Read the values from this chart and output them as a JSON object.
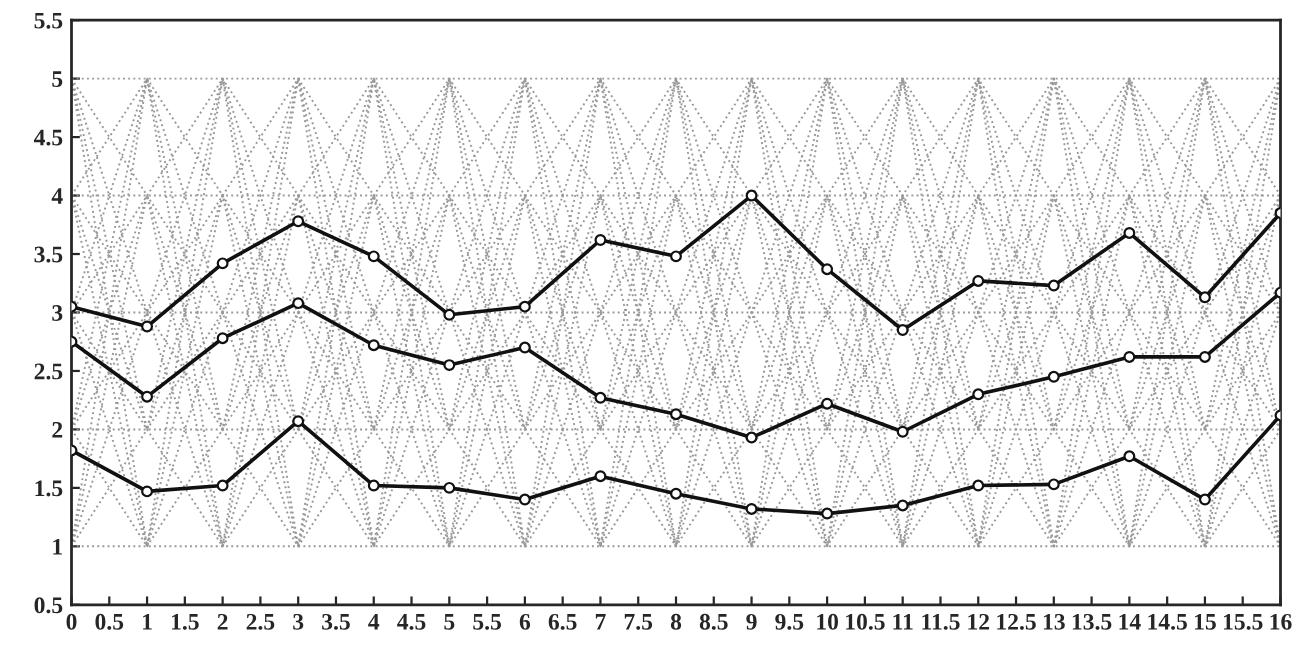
{
  "chart_data": {
    "type": "line",
    "x": [
      0,
      1,
      2,
      3,
      4,
      5,
      6,
      7,
      8,
      9,
      10,
      11,
      12,
      13,
      14,
      15,
      16
    ],
    "xlim": [
      0,
      16
    ],
    "ylim": [
      0.5,
      5.5
    ],
    "xticks": [
      0,
      0.5,
      1,
      1.5,
      2,
      2.5,
      3,
      3.5,
      4,
      4.5,
      5,
      5.5,
      6,
      6.5,
      7,
      7.5,
      8,
      8.5,
      9,
      9.5,
      10,
      10.5,
      11,
      11.5,
      12,
      12.5,
      13,
      13.5,
      14,
      14.5,
      15,
      15.5,
      16
    ],
    "yticks": [
      0.5,
      1,
      1.5,
      2,
      2.5,
      3,
      3.5,
      4,
      4.5,
      5,
      5.5
    ],
    "grid": false,
    "legend": false,
    "series": [
      {
        "color": "#999999",
        "line_style": "dotted",
        "marker": "none",
        "values": [
          1,
          1,
          1,
          1,
          1,
          1,
          1,
          1,
          1,
          1,
          1,
          1,
          1,
          1,
          1,
          1,
          1
        ]
      },
      {
        "color": "#999999",
        "line_style": "dotted",
        "marker": "none",
        "values": [
          1,
          2,
          1,
          2,
          1,
          2,
          1,
          2,
          1,
          2,
          1,
          2,
          1,
          2,
          1,
          2,
          1
        ]
      },
      {
        "color": "#999999",
        "line_style": "dotted",
        "marker": "none",
        "values": [
          1,
          3,
          1,
          3,
          1,
          3,
          1,
          3,
          1,
          3,
          1,
          3,
          1,
          3,
          1,
          3,
          1
        ]
      },
      {
        "color": "#999999",
        "line_style": "dotted",
        "marker": "none",
        "values": [
          1,
          4,
          1,
          4,
          1,
          4,
          1,
          4,
          1,
          4,
          1,
          4,
          1,
          4,
          1,
          4,
          1
        ]
      },
      {
        "color": "#999999",
        "line_style": "dotted",
        "marker": "none",
        "values": [
          1,
          5,
          1,
          5,
          1,
          5,
          1,
          5,
          1,
          5,
          1,
          5,
          1,
          5,
          1,
          5,
          1
        ]
      },
      {
        "color": "#999999",
        "line_style": "dotted",
        "marker": "none",
        "values": [
          2,
          1,
          2,
          1,
          2,
          1,
          2,
          1,
          2,
          1,
          2,
          1,
          2,
          1,
          2,
          1,
          2
        ]
      },
      {
        "color": "#999999",
        "line_style": "dotted",
        "marker": "none",
        "values": [
          2,
          2,
          2,
          2,
          2,
          2,
          2,
          2,
          2,
          2,
          2,
          2,
          2,
          2,
          2,
          2,
          2
        ]
      },
      {
        "color": "#999999",
        "line_style": "dotted",
        "marker": "none",
        "values": [
          2,
          3,
          2,
          3,
          2,
          3,
          2,
          3,
          2,
          3,
          2,
          3,
          2,
          3,
          2,
          3,
          2
        ]
      },
      {
        "color": "#999999",
        "line_style": "dotted",
        "marker": "none",
        "values": [
          2,
          4,
          2,
          4,
          2,
          4,
          2,
          4,
          2,
          4,
          2,
          4,
          2,
          4,
          2,
          4,
          2
        ]
      },
      {
        "color": "#999999",
        "line_style": "dotted",
        "marker": "none",
        "values": [
          2,
          5,
          2,
          5,
          2,
          5,
          2,
          5,
          2,
          5,
          2,
          5,
          2,
          5,
          2,
          5,
          2
        ]
      },
      {
        "color": "#999999",
        "line_style": "dotted",
        "marker": "none",
        "values": [
          3,
          1,
          3,
          1,
          3,
          1,
          3,
          1,
          3,
          1,
          3,
          1,
          3,
          1,
          3,
          1,
          3
        ]
      },
      {
        "color": "#999999",
        "line_style": "dotted",
        "marker": "none",
        "values": [
          3,
          2,
          3,
          2,
          3,
          2,
          3,
          2,
          3,
          2,
          3,
          2,
          3,
          2,
          3,
          2,
          3
        ]
      },
      {
        "color": "#999999",
        "line_style": "dotted",
        "marker": "none",
        "values": [
          3,
          3,
          3,
          3,
          3,
          3,
          3,
          3,
          3,
          3,
          3,
          3,
          3,
          3,
          3,
          3,
          3
        ]
      },
      {
        "color": "#999999",
        "line_style": "dotted",
        "marker": "none",
        "values": [
          3,
          4,
          3,
          4,
          3,
          4,
          3,
          4,
          3,
          4,
          3,
          4,
          3,
          4,
          3,
          4,
          3
        ]
      },
      {
        "color": "#999999",
        "line_style": "dotted",
        "marker": "none",
        "values": [
          3,
          5,
          3,
          5,
          3,
          5,
          3,
          5,
          3,
          5,
          3,
          5,
          3,
          5,
          3,
          5,
          3
        ]
      },
      {
        "color": "#999999",
        "line_style": "dotted",
        "marker": "none",
        "values": [
          4,
          1,
          4,
          1,
          4,
          1,
          4,
          1,
          4,
          1,
          4,
          1,
          4,
          1,
          4,
          1,
          4
        ]
      },
      {
        "color": "#999999",
        "line_style": "dotted",
        "marker": "none",
        "values": [
          4,
          2,
          4,
          2,
          4,
          2,
          4,
          2,
          4,
          2,
          4,
          2,
          4,
          2,
          4,
          2,
          4
        ]
      },
      {
        "color": "#999999",
        "line_style": "dotted",
        "marker": "none",
        "values": [
          4,
          3,
          4,
          3,
          4,
          3,
          4,
          3,
          4,
          3,
          4,
          3,
          4,
          3,
          4,
          3,
          4
        ]
      },
      {
        "color": "#999999",
        "line_style": "dotted",
        "marker": "none",
        "values": [
          4,
          4,
          4,
          4,
          4,
          4,
          4,
          4,
          4,
          4,
          4,
          4,
          4,
          4,
          4,
          4,
          4
        ]
      },
      {
        "color": "#999999",
        "line_style": "dotted",
        "marker": "none",
        "values": [
          4,
          5,
          4,
          5,
          4,
          5,
          4,
          5,
          4,
          5,
          4,
          5,
          4,
          5,
          4,
          5,
          4
        ]
      },
      {
        "color": "#999999",
        "line_style": "dotted",
        "marker": "none",
        "values": [
          5,
          1,
          5,
          1,
          5,
          1,
          5,
          1,
          5,
          1,
          5,
          1,
          5,
          1,
          5,
          1,
          5
        ]
      },
      {
        "color": "#999999",
        "line_style": "dotted",
        "marker": "none",
        "values": [
          5,
          2,
          5,
          2,
          5,
          2,
          5,
          2,
          5,
          2,
          5,
          2,
          5,
          2,
          5,
          2,
          5
        ]
      },
      {
        "color": "#999999",
        "line_style": "dotted",
        "marker": "none",
        "values": [
          5,
          3,
          5,
          3,
          5,
          3,
          5,
          3,
          5,
          3,
          5,
          3,
          5,
          3,
          5,
          3,
          5
        ]
      },
      {
        "color": "#999999",
        "line_style": "dotted",
        "marker": "none",
        "values": [
          5,
          4,
          5,
          4,
          5,
          4,
          5,
          4,
          5,
          4,
          5,
          4,
          5,
          4,
          5,
          4,
          5
        ]
      },
      {
        "color": "#999999",
        "line_style": "dotted",
        "marker": "none",
        "values": [
          5,
          5,
          5,
          5,
          5,
          5,
          5,
          5,
          5,
          5,
          5,
          5,
          5,
          5,
          5,
          5,
          5
        ]
      },
      {
        "color": "#111111",
        "line_style": "solid",
        "marker": "circle",
        "values": [
          3.05,
          2.88,
          3.42,
          3.78,
          3.48,
          2.98,
          3.05,
          3.62,
          3.48,
          4.0,
          3.37,
          2.85,
          3.27,
          3.23,
          3.68,
          3.13,
          3.85
        ]
      },
      {
        "color": "#111111",
        "line_style": "solid",
        "marker": "circle",
        "values": [
          2.75,
          2.28,
          2.78,
          3.08,
          2.72,
          2.55,
          2.7,
          2.27,
          2.13,
          1.93,
          2.22,
          1.98,
          2.3,
          2.45,
          2.62,
          2.62,
          3.17
        ]
      },
      {
        "color": "#111111",
        "line_style": "solid",
        "marker": "circle",
        "values": [
          1.82,
          1.47,
          1.52,
          2.07,
          1.52,
          1.5,
          1.4,
          1.6,
          1.45,
          1.32,
          1.28,
          1.35,
          1.52,
          1.53,
          1.77,
          1.4,
          2.12
        ]
      }
    ]
  }
}
